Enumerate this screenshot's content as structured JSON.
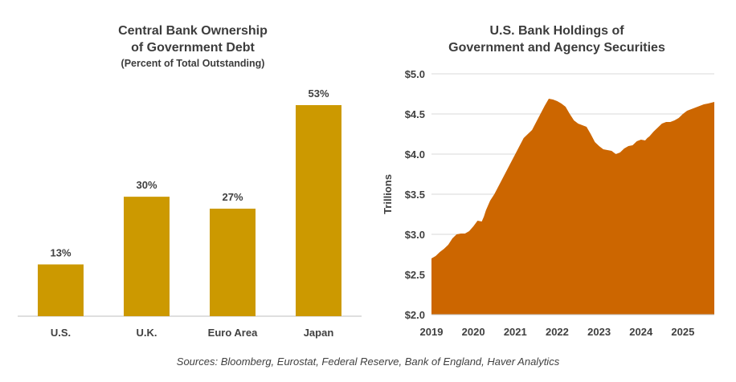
{
  "colors": {
    "bar": "#cc9900",
    "area": "#cc6600",
    "axis": "#bfbfbf",
    "grid": "#d9d9d9"
  },
  "chart_data": [
    {
      "type": "bar",
      "title": "Central Bank Ownership of Government Debt",
      "title_lines": [
        "Central Bank Ownership",
        "of Government Debt"
      ],
      "subtitle": "(Percent of Total Outstanding)",
      "categories": [
        "U.S.",
        "U.K.",
        "Euro Area",
        "Japan"
      ],
      "values": [
        13,
        30,
        27,
        53
      ],
      "data_labels": [
        "13%",
        "30%",
        "27%",
        "53%"
      ],
      "ylim": [
        0,
        60
      ],
      "grid": false
    },
    {
      "type": "area",
      "title": "U.S. Bank Holdings of Government and Agency Securities",
      "title_lines": [
        "U.S. Bank Holdings of",
        "Government and Agency Securities"
      ],
      "ylabel": "Trillions",
      "ylim": [
        2.0,
        5.0
      ],
      "y_ticks": [
        2.0,
        2.5,
        3.0,
        3.5,
        4.0,
        4.5,
        5.0
      ],
      "y_tick_labels": [
        "$2.0",
        "$2.5",
        "$3.0",
        "$3.5",
        "$4.0",
        "$4.5",
        "$5.0"
      ],
      "x_tick_labels": [
        "2019",
        "2020",
        "2021",
        "2022",
        "2023",
        "2024",
        "2025"
      ],
      "xlim": [
        2019.0,
        2025.75
      ],
      "grid": true,
      "series": [
        {
          "name": "U.S. Bank Holdings",
          "x": [
            2019.0,
            2019.1,
            2019.2,
            2019.3,
            2019.4,
            2019.5,
            2019.6,
            2019.7,
            2019.8,
            2019.9,
            2020.0,
            2020.1,
            2020.2,
            2020.25,
            2020.3,
            2020.4,
            2020.5,
            2020.6,
            2020.7,
            2020.8,
            2020.9,
            2021.0,
            2021.1,
            2021.2,
            2021.3,
            2021.4,
            2021.5,
            2021.6,
            2021.7,
            2021.8,
            2021.9,
            2022.0,
            2022.1,
            2022.2,
            2022.3,
            2022.4,
            2022.5,
            2022.6,
            2022.7,
            2022.8,
            2022.9,
            2023.0,
            2023.1,
            2023.2,
            2023.3,
            2023.4,
            2023.5,
            2023.6,
            2023.7,
            2023.8,
            2023.9,
            2024.0,
            2024.1,
            2024.15,
            2024.2,
            2024.3,
            2024.4,
            2024.5,
            2024.6,
            2024.7,
            2024.8,
            2024.9,
            2025.0,
            2025.1,
            2025.2,
            2025.3,
            2025.4,
            2025.5,
            2025.6,
            2025.75
          ],
          "values": [
            2.7,
            2.73,
            2.78,
            2.82,
            2.87,
            2.95,
            3.0,
            3.01,
            3.01,
            3.04,
            3.1,
            3.17,
            3.16,
            3.22,
            3.3,
            3.42,
            3.5,
            3.6,
            3.7,
            3.8,
            3.9,
            4.0,
            4.1,
            4.2,
            4.25,
            4.3,
            4.4,
            4.5,
            4.6,
            4.69,
            4.68,
            4.66,
            4.63,
            4.59,
            4.5,
            4.42,
            4.38,
            4.36,
            4.34,
            4.25,
            4.15,
            4.1,
            4.06,
            4.05,
            4.04,
            4.0,
            4.02,
            4.07,
            4.1,
            4.11,
            4.16,
            4.18,
            4.17,
            4.2,
            4.22,
            4.28,
            4.33,
            4.38,
            4.4,
            4.4,
            4.42,
            4.45,
            4.5,
            4.54,
            4.56,
            4.58,
            4.6,
            4.62,
            4.63,
            4.65
          ]
        }
      ]
    }
  ],
  "sources": "Sources: Bloomberg, Eurostat, Federal Reserve, Bank of England, Haver Analytics"
}
